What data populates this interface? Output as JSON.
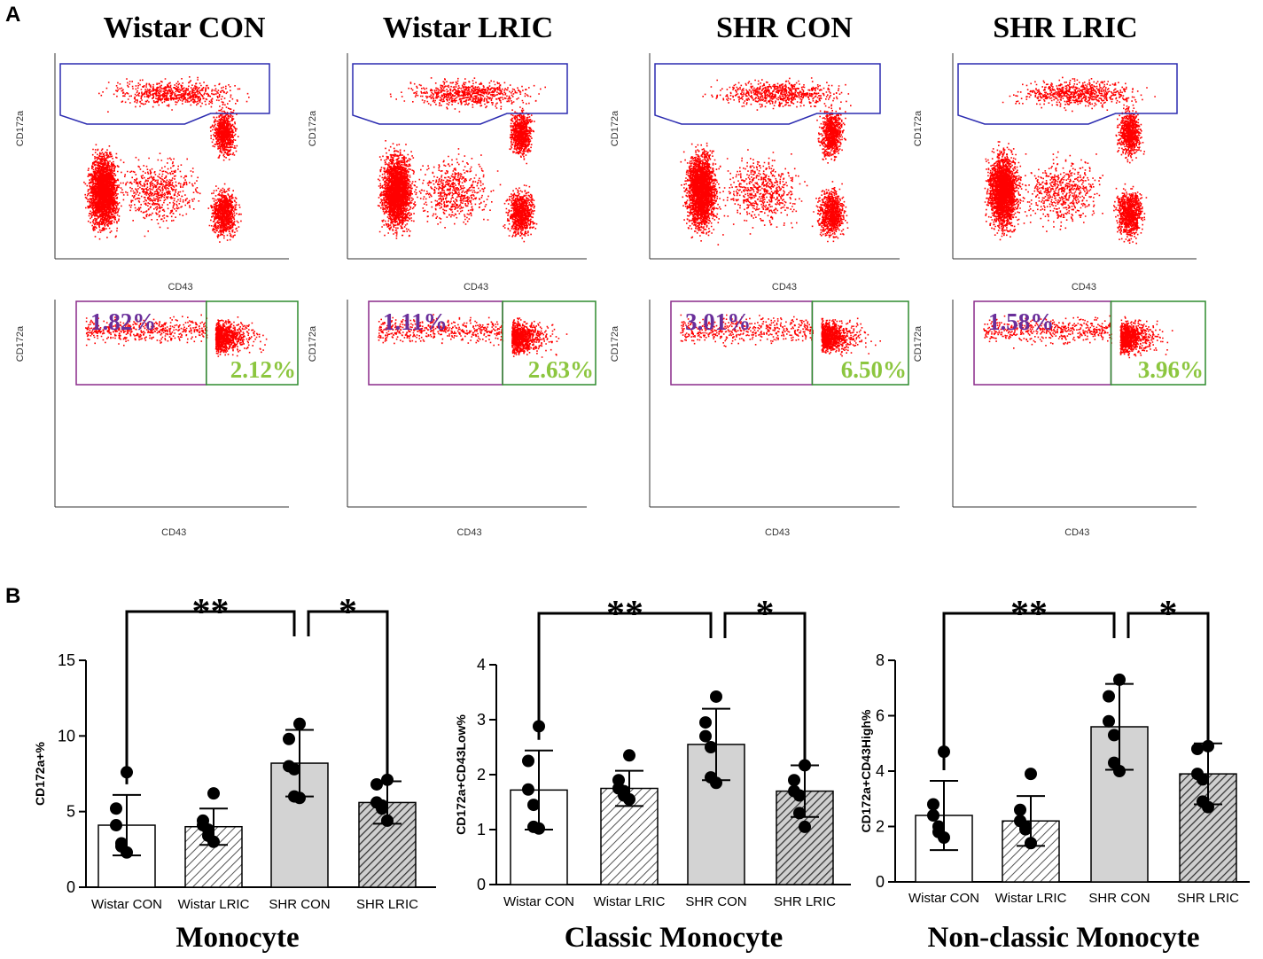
{
  "panel_a": {
    "label": "A",
    "groups": [
      {
        "title": "Wistar CON",
        "left_pct": "1.82%",
        "right_pct": "2.12%"
      },
      {
        "title": "Wistar  LRIC",
        "left_pct": "1.11%",
        "right_pct": "2.63%"
      },
      {
        "title": "SHR CON",
        "left_pct": "3.01%",
        "right_pct": "6.50%"
      },
      {
        "title": "SHR LRIC",
        "left_pct": "1.58%",
        "right_pct": "3.96%"
      }
    ],
    "x_axis_label": "CD43",
    "y_axis_label": "CD172a"
  },
  "panel_b": {
    "label": "B",
    "significance": {
      "left": "**",
      "right": "*"
    }
  },
  "colors": {
    "dots": "#ff0000",
    "gate_top": "#2b2bb0",
    "gate_left": "#8a2a8a",
    "gate_right": "#2e8b2e",
    "pct_left": "#6a2e9a",
    "pct_right": "#8cc63f",
    "bar_solid": "#d3d3d3"
  },
  "chart_data": [
    {
      "type": "bar",
      "title": "Monocyte",
      "ylabel": "CD172a+%",
      "ylim": [
        0,
        15
      ],
      "yticks": [
        0,
        5,
        10,
        15
      ],
      "categories": [
        "Wistar CON",
        "Wistar LRIC",
        "SHR CON",
        "SHR LRIC"
      ],
      "values": [
        4.1,
        4.0,
        8.2,
        5.6
      ],
      "errors": [
        2.0,
        1.2,
        2.2,
        1.4
      ],
      "points": [
        [
          7.6,
          5.2,
          4.1,
          2.9,
          2.7,
          2.3
        ],
        [
          6.2,
          4.4,
          4.1,
          3.8,
          3.4,
          3.0
        ],
        [
          10.8,
          9.8,
          8.0,
          7.8,
          6.0,
          5.9
        ],
        [
          7.1,
          6.8,
          5.6,
          5.4,
          5.2,
          4.4
        ]
      ],
      "patterns": [
        "white",
        "hatch",
        "solid",
        "hatch-dark"
      ],
      "brackets": [
        [
          0,
          2,
          "**"
        ],
        [
          2,
          3,
          "*"
        ]
      ]
    },
    {
      "type": "bar",
      "title": "Classic Monocyte",
      "ylabel": "CD172a+CD43Low%",
      "ylim": [
        0,
        4
      ],
      "yticks": [
        0,
        1,
        2,
        3,
        4
      ],
      "categories": [
        "Wistar CON",
        "Wistar LRIC",
        "SHR CON",
        "SHR LRIC"
      ],
      "values": [
        1.72,
        1.75,
        2.55,
        1.7
      ],
      "errors": [
        0.72,
        0.32,
        0.65,
        0.47
      ],
      "points": [
        [
          2.88,
          2.25,
          1.73,
          1.45,
          1.05,
          1.02
        ],
        [
          2.35,
          1.9,
          1.75,
          1.7,
          1.62,
          1.55
        ],
        [
          3.42,
          2.95,
          2.7,
          2.5,
          1.95,
          1.85
        ],
        [
          2.17,
          1.9,
          1.7,
          1.62,
          1.3,
          1.05
        ]
      ],
      "patterns": [
        "white",
        "hatch",
        "solid",
        "hatch-dark"
      ],
      "brackets": [
        [
          0,
          2,
          "**"
        ],
        [
          2,
          3,
          "*"
        ]
      ]
    },
    {
      "type": "bar",
      "title": "Non-classic Monocyte",
      "ylabel": "CD172a+CD43High%",
      "ylim": [
        0,
        8
      ],
      "yticks": [
        0,
        2,
        4,
        6,
        8
      ],
      "categories": [
        "Wistar CON",
        "Wistar LRIC",
        "SHR CON",
        "SHR LRIC"
      ],
      "values": [
        2.4,
        2.2,
        5.6,
        3.9
      ],
      "errors": [
        1.25,
        0.9,
        1.55,
        1.1
      ],
      "points": [
        [
          4.7,
          2.8,
          2.4,
          2.0,
          1.8,
          1.6
        ],
        [
          3.9,
          2.6,
          2.2,
          2.0,
          1.9,
          1.4
        ],
        [
          7.3,
          6.7,
          5.8,
          5.3,
          4.3,
          4.0
        ],
        [
          4.9,
          4.8,
          3.9,
          3.7,
          2.9,
          2.7
        ]
      ],
      "patterns": [
        "white",
        "hatch",
        "solid",
        "hatch-dark"
      ],
      "brackets": [
        [
          0,
          2,
          "**"
        ],
        [
          2,
          3,
          "*"
        ]
      ]
    }
  ]
}
